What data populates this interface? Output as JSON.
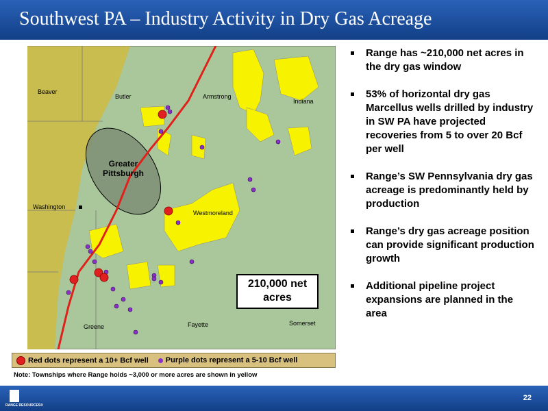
{
  "header": {
    "title": "Southwest PA – Industry Activity in Dry Gas Acreage"
  },
  "map": {
    "counties": [
      "Beaver",
      "Butler",
      "Armstrong",
      "Indiana",
      "Washington",
      "Westmoreland",
      "Greene",
      "Fayette",
      "Somerset"
    ],
    "area_label": "Greater Pittsburgh",
    "callout": "210,000 net acres"
  },
  "legend": {
    "red": "Red dots represent a 10+ Bcf well",
    "purple": "Purple dots represent a 5-10 Bcf well"
  },
  "note": "Note: Townships where Range holds ~3,000 or more acres are shown in yellow",
  "bullets": [
    "Range has ~210,000 net acres in the dry gas window",
    "53% of horizontal dry gas Marcellus wells drilled by industry in SW PA have projected recoveries from 5 to over 20 Bcf per well",
    "Range’s SW Pennsylvania dry gas acreage is predominantly held by production",
    "Range’s dry gas acreage position can provide significant production growth",
    "Additional pipeline project expansions are planned in the area"
  ],
  "footer": {
    "logo": "RANGE RESOURCES®",
    "page": "22"
  }
}
